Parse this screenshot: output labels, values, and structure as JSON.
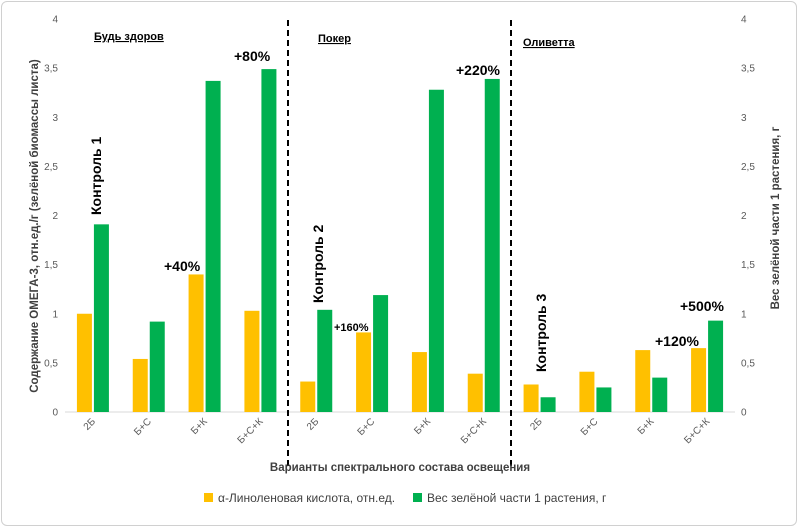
{
  "chart_data": {
    "type": "bar",
    "categories": [
      "2Б",
      "Б+С",
      "Б+К",
      "Б+С+К",
      "2Б",
      "Б+С",
      "Б+К",
      "Б+С+К",
      "2Б",
      "Б+С",
      "Б+К",
      "Б+С+К"
    ],
    "groups": [
      "Будь здоров",
      "Покер",
      "Оливетта"
    ],
    "series": [
      {
        "name": "α-Линоленовая кислота, отн.ед.",
        "axis": "left",
        "color": "#FFC000",
        "values": [
          1.0,
          0.54,
          1.4,
          1.03,
          0.31,
          0.81,
          0.61,
          0.39,
          0.28,
          0.41,
          0.63,
          0.65
        ]
      },
      {
        "name": "Вес зелёной части 1 растения, г",
        "axis": "right",
        "color": "#00B050",
        "values": [
          1.91,
          0.92,
          3.37,
          3.49,
          1.04,
          1.19,
          3.28,
          3.39,
          0.15,
          0.25,
          0.35,
          0.93
        ]
      }
    ],
    "ylabel": "Содержание ОМЕГА-3, отн.ед./г (зелёной биомассы листа)",
    "y2label": "Вес зелёной части 1 растения, г",
    "xlabel": "Варианты спектрального состава освещения",
    "ylim": [
      0,
      4
    ],
    "y2lim": [
      0,
      4
    ],
    "yticks": [
      "0",
      "0,5",
      "1",
      "1,5",
      "2",
      "2,5",
      "3",
      "3,5",
      "4"
    ],
    "y2ticks": [
      "0",
      "0,5",
      "1",
      "1,5",
      "2",
      "2,5",
      "3",
      "3,5",
      "4"
    ],
    "annotations": {
      "control1": "Контроль 1",
      "control2": "Контроль 2",
      "control3": "Контроль 3",
      "p40": "+40%",
      "p80": "+80%",
      "p160": "+160%",
      "p220": "+220%",
      "p120": "+120%",
      "p500": "+500%"
    },
    "legend_position": "bottom",
    "grid": false
  }
}
